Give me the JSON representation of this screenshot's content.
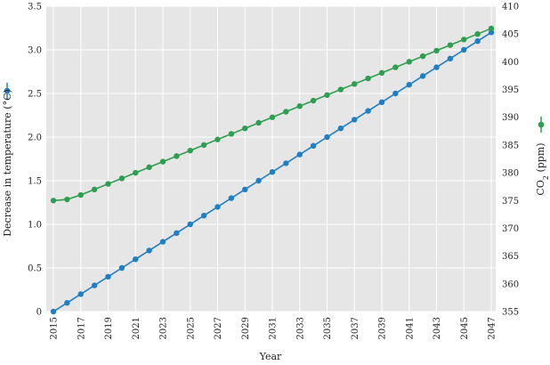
{
  "chart_data": {
    "type": "line",
    "xlabel": "Year",
    "ylabel_left": "Decrease in temperature (°C)",
    "ylabel_right_main": "CO",
    "ylabel_right_sub": "2",
    "ylabel_right_unit": " (ppm)",
    "xlim": [
      2015,
      2047
    ],
    "ylim_left": [
      0,
      3.5
    ],
    "ylim_right": [
      355,
      410
    ],
    "x_ticks": [
      2015,
      2017,
      2019,
      2021,
      2023,
      2025,
      2027,
      2029,
      2031,
      2033,
      2035,
      2037,
      2039,
      2041,
      2043,
      2045,
      2047
    ],
    "y_ticks_left": [
      0,
      0.5,
      1.0,
      1.5,
      2.0,
      2.5,
      3.0,
      3.5
    ],
    "y_tick_labels_left": [
      "0",
      "0.5",
      "1.0",
      "1.5",
      "2.0",
      "2.5",
      "3.0",
      "3.5"
    ],
    "y_ticks_right": [
      355,
      360,
      365,
      370,
      375,
      380,
      385,
      390,
      395,
      400,
      405,
      410
    ],
    "grid": true,
    "series": [
      {
        "axis": "left",
        "color": "#1f7fc4",
        "x": [
          2015,
          2016,
          2017,
          2018,
          2019,
          2020,
          2021,
          2022,
          2023,
          2024,
          2025,
          2026,
          2027,
          2028,
          2029,
          2030,
          2031,
          2032,
          2033,
          2034,
          2035,
          2036,
          2037,
          2038,
          2039,
          2040,
          2041,
          2042,
          2043,
          2044,
          2045,
          2046,
          2047
        ],
        "values": [
          0.0,
          0.1,
          0.2,
          0.3,
          0.4,
          0.5,
          0.6,
          0.7,
          0.8,
          0.9,
          1.0,
          1.1,
          1.2,
          1.3,
          1.4,
          1.5,
          1.6,
          1.7,
          1.8,
          1.9,
          2.0,
          2.1,
          2.2,
          2.3,
          2.4,
          2.5,
          2.6,
          2.7,
          2.8,
          2.9,
          3.0,
          3.1,
          3.2
        ]
      },
      {
        "axis": "right",
        "color": "#2e9e4f",
        "x": [
          2015,
          2016,
          2017,
          2018,
          2019,
          2020,
          2021,
          2022,
          2023,
          2024,
          2025,
          2026,
          2027,
          2028,
          2029,
          2030,
          2031,
          2032,
          2033,
          2034,
          2035,
          2036,
          2037,
          2038,
          2039,
          2040,
          2041,
          2042,
          2043,
          2044,
          2045,
          2046,
          2047
        ],
        "values": [
          375.0,
          375.2,
          376.0,
          377.0,
          378.0,
          379.0,
          380.0,
          381.0,
          382.0,
          383.0,
          384.0,
          385.0,
          386.0,
          387.0,
          388.0,
          389.0,
          390.0,
          391.0,
          392.0,
          393.0,
          394.0,
          395.0,
          396.0,
          397.0,
          398.0,
          399.0,
          400.0,
          401.0,
          402.0,
          403.0,
          404.0,
          405.0,
          406.0
        ]
      }
    ]
  }
}
